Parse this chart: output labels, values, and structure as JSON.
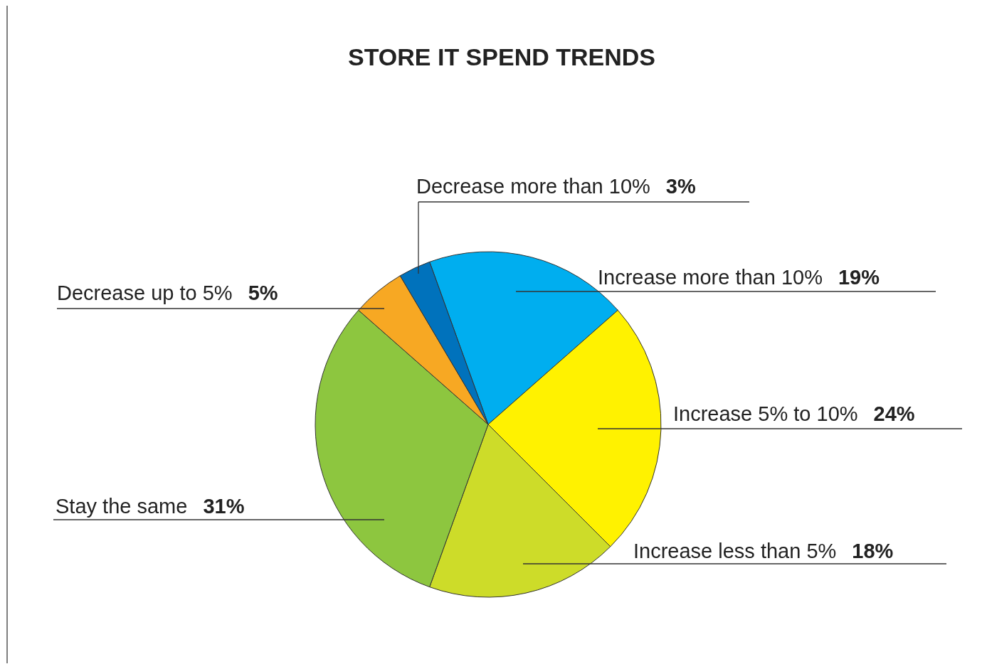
{
  "chart_data": {
    "type": "pie",
    "title": "STORE IT SPEND TRENDS",
    "categories": [
      "Increase more than 10%",
      "Increase 5% to 10%",
      "Increase less than 5%",
      "Stay the same",
      "Decrease up to 5%",
      "Decrease more than 10%"
    ],
    "values": [
      19,
      24,
      18,
      31,
      5,
      3
    ],
    "colors": [
      "#00aeef",
      "#fff200",
      "#cddc29",
      "#8dc63f",
      "#f7a823",
      "#0072bc"
    ],
    "value_labels": [
      "19%",
      "24%",
      "18%",
      "31%",
      "5%",
      "3%"
    ]
  }
}
